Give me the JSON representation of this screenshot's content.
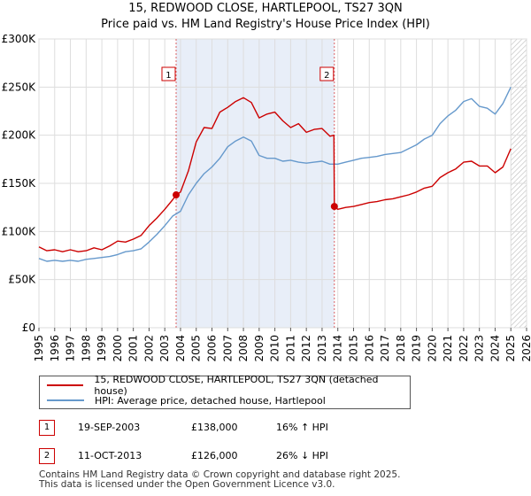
{
  "title_line1": "15, REDWOOD CLOSE, HARTLEPOOL, TS27 3QN",
  "title_line2": "Price paid vs. HM Land Registry's House Price Index (HPI)",
  "colors": {
    "property": "#cc0000",
    "hpi": "#6699cc",
    "grid": "#dddddd",
    "marker": "#cc0000",
    "band": "#e8eef8"
  },
  "legend": {
    "property_label": "15, REDWOOD CLOSE, HARTLEPOOL, TS27 3QN (detached house)",
    "hpi_label": "HPI: Average price, detached house, Hartlepool"
  },
  "transactions": [
    {
      "num": "1",
      "date": "19-SEP-2003",
      "price": "£138,000",
      "hpi_change": "16% ↑ HPI"
    },
    {
      "num": "2",
      "date": "11-OCT-2013",
      "price": "£126,000",
      "hpi_change": "26% ↓ HPI"
    }
  ],
  "footer_line1": "Contains HM Land Registry data © Crown copyright and database right 2025.",
  "footer_line2": "This data is licensed under the Open Government Licence v3.0.",
  "chart_data": {
    "type": "line",
    "title": "15, REDWOOD CLOSE, HARTLEPOOL, TS27 3QN — Price paid vs. HM Land Registry's House Price Index (HPI)",
    "xlabel": "",
    "ylabel": "",
    "xlim": [
      1995,
      2026
    ],
    "ylim": [
      0,
      300000
    ],
    "y_ticks": [
      0,
      50000,
      100000,
      150000,
      200000,
      250000,
      300000
    ],
    "y_tick_labels": [
      "£0",
      "£50K",
      "£100K",
      "£150K",
      "£200K",
      "£250K",
      "£300K"
    ],
    "x_ticks": [
      1995,
      1996,
      1997,
      1998,
      1999,
      2000,
      2001,
      2002,
      2003,
      2004,
      2005,
      2006,
      2007,
      2008,
      2009,
      2010,
      2011,
      2012,
      2013,
      2014,
      2015,
      2016,
      2017,
      2018,
      2019,
      2020,
      2021,
      2022,
      2023,
      2024,
      2025,
      2026
    ],
    "x_tick_labels": [
      "1995",
      "1996",
      "1997",
      "1998",
      "1999",
      "2000",
      "2001",
      "2002",
      "2003",
      "2004",
      "2005",
      "2006",
      "2007",
      "2008",
      "2009",
      "2010",
      "2011",
      "2012",
      "2013",
      "2014",
      "2015",
      "2016",
      "2017",
      "2018",
      "2019",
      "2020",
      "2021",
      "2022",
      "2023",
      "2024",
      "2025",
      "2026"
    ],
    "grid": true,
    "forecast_start": 2025.0,
    "sales": [
      {
        "label": "1",
        "x": 2003.72,
        "y": 138000
      },
      {
        "label": "2",
        "x": 2013.78,
        "y": 126000
      }
    ],
    "series": [
      {
        "name": "15, REDWOOD CLOSE, HARTLEPOOL, TS27 3QN (detached house)",
        "color": "#cc0000",
        "x": [
          1995.0,
          1995.5,
          1996.0,
          1996.5,
          1997.0,
          1997.5,
          1998.0,
          1998.5,
          1999.0,
          1999.5,
          2000.0,
          2000.5,
          2001.0,
          2001.5,
          2002.0,
          2002.5,
          2003.0,
          2003.5,
          2003.72,
          2004.0,
          2004.5,
          2005.0,
          2005.5,
          2006.0,
          2006.5,
          2007.0,
          2007.5,
          2008.0,
          2008.5,
          2009.0,
          2009.5,
          2010.0,
          2010.5,
          2011.0,
          2011.5,
          2012.0,
          2012.5,
          2013.0,
          2013.5,
          2013.75,
          2013.78,
          2014.0,
          2014.5,
          2015.0,
          2015.5,
          2016.0,
          2016.5,
          2017.0,
          2017.5,
          2018.0,
          2018.5,
          2019.0,
          2019.5,
          2020.0,
          2020.5,
          2021.0,
          2021.5,
          2022.0,
          2022.5,
          2023.0,
          2023.5,
          2024.0,
          2024.5,
          2025.0
        ],
        "y": [
          84000,
          80000,
          81000,
          79000,
          81000,
          79000,
          80000,
          83000,
          81000,
          85000,
          90000,
          89000,
          92000,
          96000,
          106000,
          114000,
          123000,
          133000,
          138000,
          141000,
          163000,
          193000,
          208000,
          207000,
          224000,
          229000,
          235000,
          239000,
          234000,
          218000,
          222000,
          224000,
          215000,
          208000,
          212000,
          203000,
          206000,
          207000,
          199000,
          200000,
          126000,
          123000,
          125000,
          126000,
          128000,
          130000,
          131000,
          133000,
          134000,
          136000,
          138000,
          141000,
          145000,
          147000,
          156000,
          161000,
          165000,
          172000,
          173000,
          168000,
          168000,
          161000,
          167000,
          186000
        ]
      },
      {
        "name": "HPI: Average price, detached house, Hartlepool",
        "color": "#6699cc",
        "x": [
          1995.0,
          1995.5,
          1996.0,
          1996.5,
          1997.0,
          1997.5,
          1998.0,
          1998.5,
          1999.0,
          1999.5,
          2000.0,
          2000.5,
          2001.0,
          2001.5,
          2002.0,
          2002.5,
          2003.0,
          2003.5,
          2004.0,
          2004.5,
          2005.0,
          2005.5,
          2006.0,
          2006.5,
          2007.0,
          2007.5,
          2008.0,
          2008.5,
          2009.0,
          2009.5,
          2010.0,
          2010.5,
          2011.0,
          2011.5,
          2012.0,
          2012.5,
          2013.0,
          2013.5,
          2014.0,
          2014.5,
          2015.0,
          2015.5,
          2016.0,
          2016.5,
          2017.0,
          2017.5,
          2018.0,
          2018.5,
          2019.0,
          2019.5,
          2020.0,
          2020.5,
          2021.0,
          2021.5,
          2022.0,
          2022.5,
          2023.0,
          2023.5,
          2024.0,
          2024.5,
          2025.0
        ],
        "y": [
          72000,
          69000,
          70000,
          69000,
          70000,
          69000,
          71000,
          72000,
          73000,
          74000,
          76000,
          79000,
          80000,
          82000,
          89000,
          97000,
          106000,
          116000,
          121000,
          138000,
          150000,
          160000,
          167000,
          176000,
          188000,
          194000,
          198000,
          194000,
          179000,
          176000,
          176000,
          173000,
          174000,
          172000,
          171000,
          172000,
          173000,
          170000,
          170000,
          172000,
          174000,
          176000,
          177000,
          178000,
          180000,
          181000,
          182000,
          186000,
          190000,
          196000,
          200000,
          212000,
          220000,
          226000,
          235000,
          238000,
          230000,
          228000,
          222000,
          233000,
          250000
        ]
      }
    ]
  }
}
